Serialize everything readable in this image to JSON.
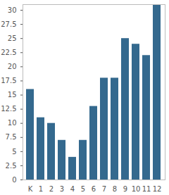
{
  "chart_data": {
    "type": "bar",
    "categories": [
      "K",
      "1",
      "2",
      "3",
      "4",
      "5",
      "6",
      "7",
      "8",
      "9",
      "10",
      "11",
      "12"
    ],
    "values": [
      16,
      11,
      10,
      7,
      4,
      7,
      13,
      18,
      18,
      25,
      24,
      22,
      31
    ],
    "color": "#34698e",
    "ylim": [
      0,
      31
    ],
    "yticks": [
      0,
      2.5,
      5,
      7.5,
      10,
      12.5,
      15,
      17.5,
      20,
      22.5,
      25,
      27.5,
      30
    ],
    "grid": false
  }
}
